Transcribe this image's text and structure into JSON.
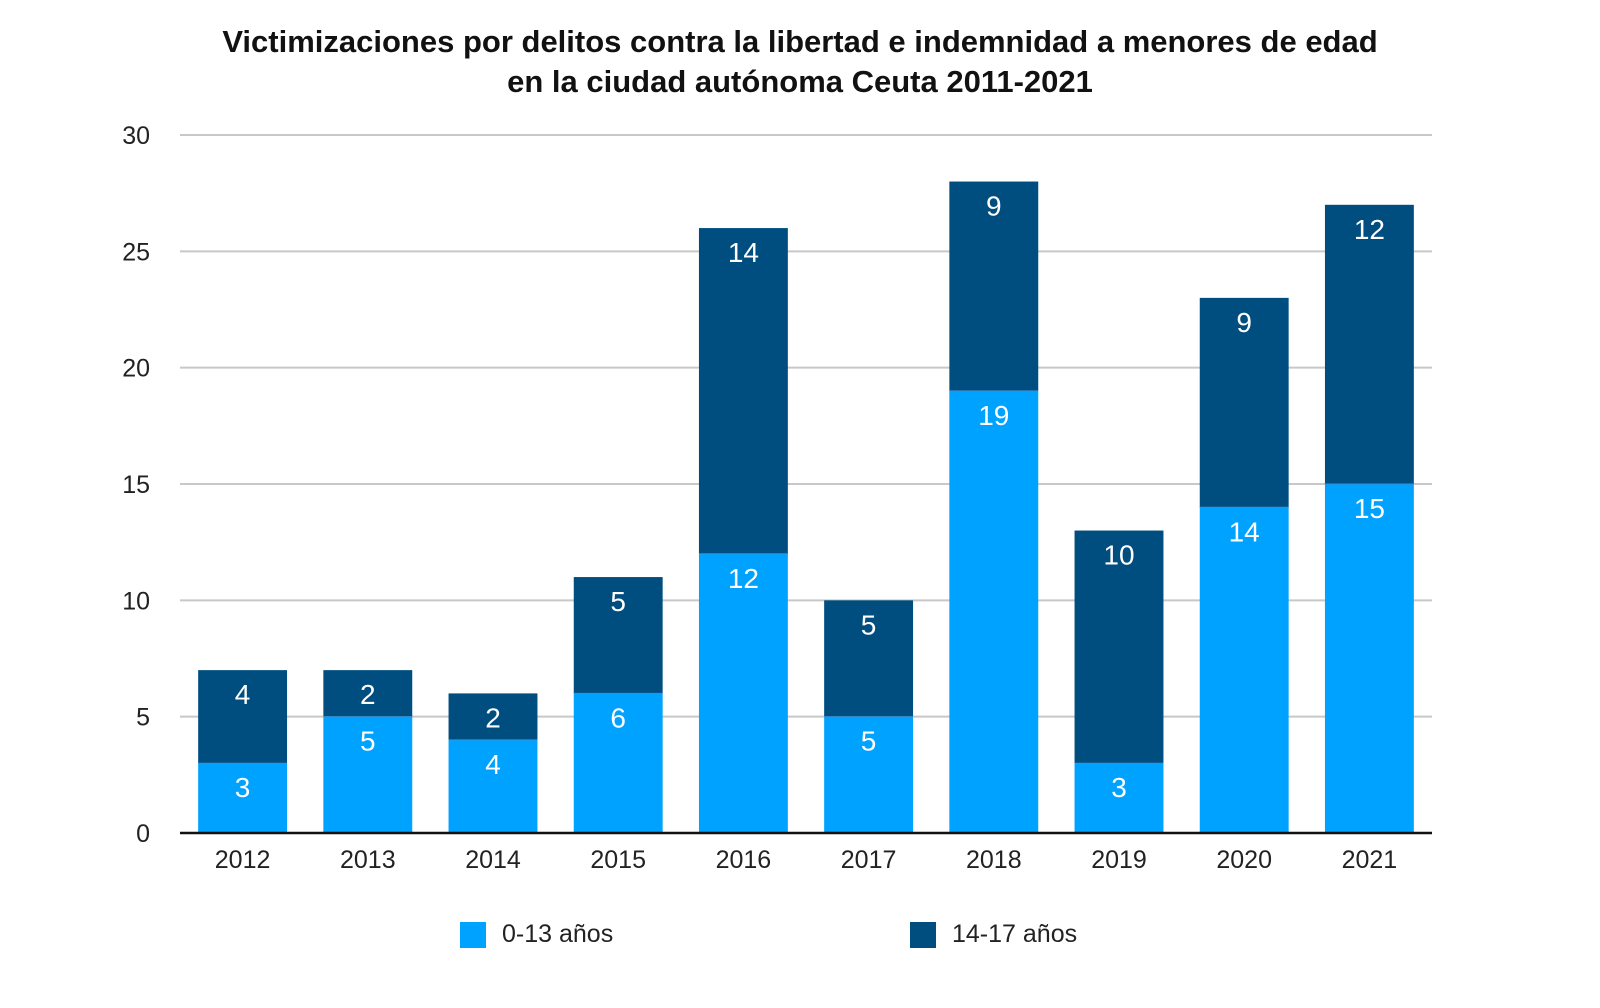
{
  "colors": {
    "series0": "#00A2FF",
    "series1": "#004D80",
    "grid": "#C8C8C8",
    "axis": "#111111"
  },
  "chart_data": {
    "type": "bar",
    "stacked": true,
    "title": "Victimizaciones por delitos contra la libertad e indemnidad a menores de edad en la ciudad autónoma Ceuta 2011-2021",
    "title_lines": [
      "Victimizaciones por delitos contra la libertad e indemnidad a menores de edad",
      "en la ciudad autónoma Ceuta 2011-2021"
    ],
    "xlabel": "",
    "ylabel": "",
    "ylim": [
      0,
      30
    ],
    "yticks": [
      0,
      5,
      10,
      15,
      20,
      25,
      30
    ],
    "grid": true,
    "legend_position": "bottom",
    "categories": [
      "2012",
      "2013",
      "2014",
      "2015",
      "2016",
      "2017",
      "2018",
      "2019",
      "2020",
      "2021"
    ],
    "series": [
      {
        "name": "0-13 años",
        "values": [
          3,
          5,
          4,
          6,
          12,
          5,
          19,
          3,
          14,
          15
        ]
      },
      {
        "name": "14-17 años",
        "values": [
          4,
          2,
          2,
          5,
          14,
          5,
          9,
          10,
          9,
          12
        ]
      }
    ]
  }
}
